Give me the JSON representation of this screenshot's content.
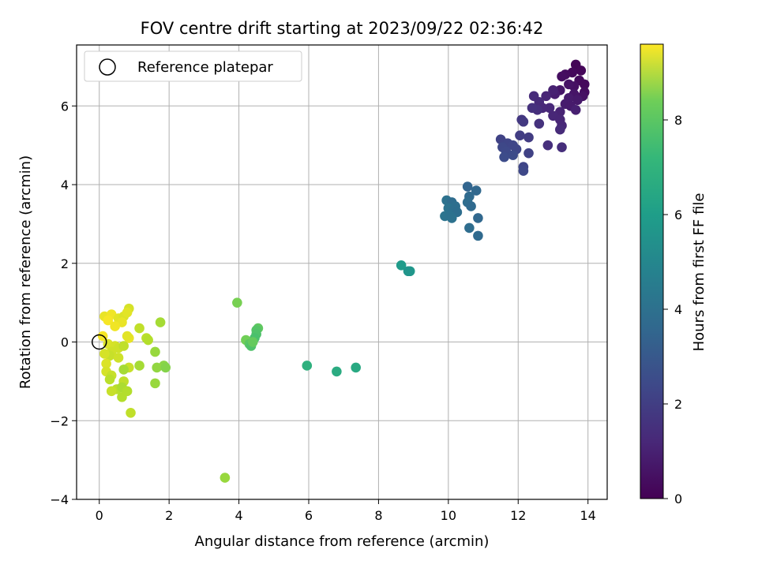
{
  "chart_data": {
    "type": "scatter",
    "title": "FOV centre drift starting at 2023/09/22 02:36:42",
    "xlabel": "Angular distance from reference (arcmin)",
    "ylabel": "Rotation from reference (arcmin)",
    "xlim": [
      -0.65,
      14.55
    ],
    "ylim": [
      -4.0,
      7.55
    ],
    "xticks": [
      0,
      2,
      4,
      6,
      8,
      10,
      12,
      14
    ],
    "xtick_labels": [
      "0",
      "2",
      "4",
      "6",
      "8",
      "10",
      "12",
      "14"
    ],
    "yticks": [
      -4,
      -2,
      0,
      2,
      4,
      6
    ],
    "ytick_labels": [
      "−4",
      "−2",
      "0",
      "2",
      "4",
      "6"
    ],
    "grid": true,
    "legend": {
      "position": "top-left",
      "label": "Reference platepar"
    },
    "reference_point": {
      "x": 0,
      "y": 0
    },
    "colorbar": {
      "label": "Hours from first FF file",
      "colormap": "viridis",
      "range": [
        0,
        9.6
      ],
      "ticks": [
        0,
        2,
        4,
        6,
        8
      ],
      "tick_labels": [
        "0",
        "2",
        "4",
        "6",
        "8"
      ]
    },
    "points": [
      [
        13.65,
        7.05,
        0.1
      ],
      [
        13.8,
        6.9,
        0.15
      ],
      [
        13.55,
        6.85,
        0.2
      ],
      [
        13.35,
        6.8,
        0.3
      ],
      [
        13.25,
        6.75,
        0.35
      ],
      [
        13.75,
        6.65,
        0.25
      ],
      [
        13.9,
        6.55,
        0.2
      ],
      [
        13.6,
        6.5,
        0.4
      ],
      [
        13.45,
        6.55,
        0.5
      ],
      [
        13.9,
        6.35,
        0.3
      ],
      [
        13.85,
        6.25,
        0.45
      ],
      [
        13.6,
        6.3,
        0.55
      ],
      [
        13.2,
        6.4,
        0.6
      ],
      [
        13.05,
        6.3,
        0.8
      ],
      [
        13.0,
        6.4,
        0.9
      ],
      [
        13.45,
        6.2,
        0.7
      ],
      [
        13.7,
        6.15,
        0.65
      ],
      [
        12.8,
        6.25,
        1.0
      ],
      [
        12.45,
        6.25,
        1.2
      ],
      [
        12.6,
        6.1,
        1.15
      ],
      [
        13.35,
        6.05,
        0.75
      ],
      [
        13.5,
        6.0,
        0.7
      ],
      [
        13.65,
        5.9,
        0.85
      ],
      [
        12.9,
        5.95,
        1.1
      ],
      [
        12.7,
        5.95,
        1.1
      ],
      [
        12.55,
        5.9,
        1.3
      ],
      [
        12.4,
        5.95,
        1.35
      ],
      [
        13.2,
        5.85,
        0.95
      ],
      [
        13.0,
        5.75,
        1.05
      ],
      [
        13.2,
        5.65,
        1.0
      ],
      [
        12.6,
        5.55,
        1.4
      ],
      [
        13.25,
        5.5,
        1.05
      ],
      [
        12.1,
        5.65,
        1.55
      ],
      [
        12.15,
        5.6,
        1.6
      ],
      [
        13.2,
        5.4,
        1.15
      ],
      [
        12.3,
        5.2,
        1.7
      ],
      [
        12.05,
        5.25,
        1.75
      ],
      [
        11.5,
        5.15,
        1.9
      ],
      [
        11.6,
        5.05,
        1.95
      ],
      [
        11.7,
        5.05,
        2.0
      ],
      [
        11.85,
        5.0,
        2.05
      ],
      [
        11.55,
        4.95,
        2.1
      ],
      [
        11.65,
        4.85,
        2.15
      ],
      [
        13.25,
        4.95,
        1.25
      ],
      [
        12.85,
        5.0,
        1.3
      ],
      [
        11.95,
        4.9,
        2.05
      ],
      [
        12.3,
        4.8,
        1.9
      ],
      [
        11.85,
        4.75,
        2.2
      ],
      [
        11.6,
        4.7,
        2.25
      ],
      [
        12.15,
        4.45,
        2.0
      ],
      [
        12.15,
        4.35,
        2.1
      ],
      [
        10.55,
        3.95,
        3.1
      ],
      [
        10.8,
        3.85,
        3.2
      ],
      [
        10.6,
        3.7,
        3.3
      ],
      [
        9.95,
        3.6,
        3.6
      ],
      [
        10.1,
        3.55,
        3.4
      ],
      [
        10.2,
        3.45,
        3.5
      ],
      [
        10.55,
        3.55,
        3.4
      ],
      [
        10.0,
        3.4,
        3.65
      ],
      [
        10.65,
        3.45,
        3.3
      ],
      [
        10.15,
        3.35,
        3.5
      ],
      [
        10.1,
        3.25,
        3.55
      ],
      [
        10.25,
        3.3,
        3.45
      ],
      [
        9.9,
        3.2,
        3.7
      ],
      [
        10.05,
        3.2,
        3.6
      ],
      [
        10.1,
        3.15,
        3.6
      ],
      [
        10.85,
        3.15,
        3.2
      ],
      [
        10.6,
        2.9,
        3.4
      ],
      [
        10.85,
        2.7,
        3.3
      ],
      [
        8.65,
        1.95,
        5.2
      ],
      [
        8.9,
        1.8,
        5.1
      ],
      [
        8.85,
        1.8,
        5.0
      ],
      [
        5.95,
        -0.6,
        6.1
      ],
      [
        6.8,
        -0.75,
        5.9
      ],
      [
        7.35,
        -0.65,
        5.8
      ],
      [
        3.95,
        1.0,
        7.6
      ],
      [
        4.55,
        0.35,
        7.2
      ],
      [
        4.5,
        0.3,
        7.0
      ],
      [
        4.5,
        0.2,
        6.9
      ],
      [
        4.45,
        0.1,
        6.8
      ],
      [
        4.2,
        0.05,
        7.5
      ],
      [
        4.3,
        -0.05,
        7.1
      ],
      [
        4.35,
        -0.1,
        6.9
      ],
      [
        4.4,
        0.0,
        7.3
      ],
      [
        3.6,
        -3.45,
        8.1
      ],
      [
        0.15,
        0.65,
        9.3
      ],
      [
        0.35,
        0.7,
        9.4
      ],
      [
        0.25,
        0.55,
        9.5
      ],
      [
        0.55,
        0.6,
        9.2
      ],
      [
        0.7,
        0.65,
        9.1
      ],
      [
        0.85,
        0.85,
        9.0
      ],
      [
        0.8,
        0.75,
        9.2
      ],
      [
        0.65,
        0.5,
        9.3
      ],
      [
        0.45,
        0.4,
        9.4
      ],
      [
        1.75,
        0.5,
        8.3
      ],
      [
        1.15,
        0.35,
        8.7
      ],
      [
        0.1,
        0.15,
        9.5
      ],
      [
        0.85,
        0.1,
        9.3
      ],
      [
        0.8,
        0.15,
        9.2
      ],
      [
        1.35,
        0.1,
        8.6
      ],
      [
        1.4,
        0.05,
        8.5
      ],
      [
        0.25,
        -0.05,
        9.1
      ],
      [
        0.45,
        -0.1,
        9.0
      ],
      [
        0.55,
        -0.15,
        8.9
      ],
      [
        0.7,
        -0.1,
        8.7
      ],
      [
        0.35,
        -0.25,
        8.9
      ],
      [
        0.3,
        -0.35,
        8.8
      ],
      [
        0.15,
        -0.3,
        9.0
      ],
      [
        1.6,
        -0.25,
        8.1
      ],
      [
        0.55,
        -0.4,
        8.9
      ],
      [
        0.2,
        -0.55,
        9.1
      ],
      [
        1.15,
        -0.6,
        8.3
      ],
      [
        1.85,
        -0.6,
        7.9
      ],
      [
        1.65,
        -0.65,
        8.0
      ],
      [
        1.9,
        -0.65,
        7.8
      ],
      [
        0.85,
        -0.65,
        8.8
      ],
      [
        0.7,
        -0.7,
        8.3
      ],
      [
        0.2,
        -0.75,
        9.0
      ],
      [
        0.35,
        -0.85,
        8.8
      ],
      [
        0.3,
        -0.95,
        8.6
      ],
      [
        0.7,
        -1.0,
        8.7
      ],
      [
        1.6,
        -1.05,
        8.1
      ],
      [
        0.5,
        -1.2,
        8.6
      ],
      [
        0.35,
        -1.25,
        8.8
      ],
      [
        0.65,
        -1.15,
        8.4
      ],
      [
        0.8,
        -1.25,
        8.5
      ],
      [
        0.65,
        -1.4,
        8.5
      ],
      [
        0.9,
        -1.8,
        8.7
      ]
    ]
  }
}
